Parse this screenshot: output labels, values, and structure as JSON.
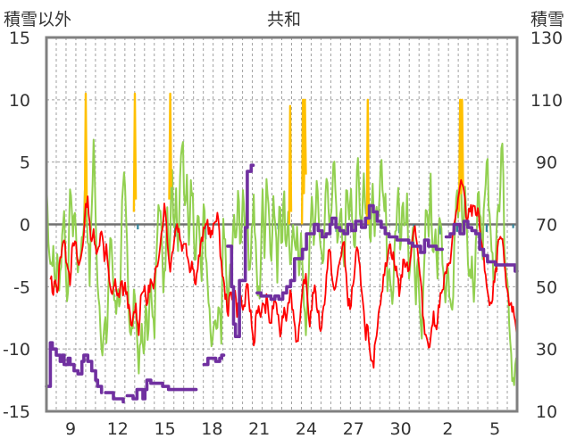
{
  "chart_data": {
    "type": "line",
    "title": "共和",
    "ylabel_left": "積雪以外",
    "ylabel_right": "積雪",
    "ylim_left": [
      -15,
      15
    ],
    "ylim_right": [
      10,
      130
    ],
    "yticks_left": [
      "15",
      "10",
      "5",
      "0",
      "-5",
      "-10",
      "-15"
    ],
    "yticks_right": [
      "130",
      "110",
      "90",
      "70",
      "50",
      "30",
      "10"
    ],
    "xticks": [
      "9",
      "12",
      "15",
      "18",
      "21",
      "24",
      "27",
      "30",
      "2",
      "5"
    ],
    "grid": true,
    "colors": {
      "frame": "#808080",
      "grid": "#a0a0a0",
      "zero_line": "#707070",
      "red": "#ff0000",
      "green": "#92d050",
      "orange": "#ffc000",
      "teal": "#31859c",
      "purple": "#7030a0",
      "text": "#333333"
    },
    "series": [
      {
        "key": "red",
        "axis": "left",
        "values": [
          -1.2,
          -3.0,
          -4.2,
          -5.5,
          -4.0,
          -6.0,
          -3.5,
          -2.0,
          -1.0,
          -2.5,
          -3.0,
          -4.5,
          -2.2,
          -1.5,
          -2.0,
          -3.5,
          -2.8,
          -1.5,
          0.5,
          2.2,
          1.0,
          -2.0,
          -0.5,
          -1.5,
          -2.5,
          -1.0,
          0.0,
          -3.0,
          -2.0,
          -4.0,
          -5.0,
          -5.8,
          -4.5,
          -6.0,
          -5.5,
          -4.5,
          -5.5,
          -5.0,
          -6.0,
          -7.5,
          -8.5,
          -7.0,
          -6.5,
          -9.0,
          -6.0,
          -5.0,
          -5.5,
          -6.5,
          -5.0,
          -4.5,
          -5.5,
          -4.0,
          -3.0,
          -1.5,
          -0.5,
          1.5,
          0.5,
          -2.5,
          -3.5,
          -2.0,
          -0.5,
          0.0,
          -0.5,
          -1.5,
          -2.0,
          -1.0,
          -2.5,
          -3.5,
          -3.0,
          -4.0,
          -4.5,
          -3.0,
          -2.0,
          -1.0,
          -0.5,
          0.5,
          -0.5,
          -1.0,
          -0.5,
          0.5,
          1.0,
          -1.5,
          -3.5,
          -5.0,
          -6.0,
          -7.0,
          -5.5,
          -6.0,
          -5.0,
          -7.0,
          -6.5,
          -6.0,
          -7.0,
          -6.0,
          -5.0,
          -6.5,
          -8.0,
          -10.0,
          -7.0,
          -6.5,
          -8.0,
          -6.0,
          -7.0,
          -6.0,
          -7.5,
          -8.0,
          -6.5,
          -6.0,
          -7.0,
          -9.0,
          -8.0,
          -6.5,
          -7.5,
          -6.0,
          -5.5,
          -6.5,
          -8.0,
          -9.5,
          -8.5,
          -7.0,
          -5.0,
          -4.0,
          -6.0,
          -8.0,
          -6.5,
          -5.0,
          -6.0,
          -7.0,
          -8.5,
          -7.5,
          -6.0,
          -4.0,
          -2.0,
          -3.0,
          -5.0,
          -5.5,
          -4.0,
          -3.0,
          -2.0,
          -1.5,
          -4.0,
          -6.0,
          -7.0,
          -5.0,
          -4.0,
          -2.0,
          -3.0,
          -4.5,
          -6.0,
          -9.0,
          -8.0,
          -10.5,
          -11.5,
          -11.0,
          -9.0,
          -7.5,
          -6.0,
          -5.0,
          -4.0,
          -3.0,
          -1.5,
          -2.0,
          -2.5,
          -3.5,
          -4.0,
          -5.5,
          -4.0,
          -3.0,
          -3.0,
          -4.0,
          -2.5,
          -1.5,
          0.5,
          -1.5,
          -3.0,
          -5.0,
          -7.0,
          -9.0,
          -8.5,
          -10.5,
          -8.0,
          -7.5,
          -8.5,
          -7.0,
          -6.0,
          -5.5,
          -4.5,
          -4.0,
          -3.0,
          -2.5,
          -1.0,
          0.5,
          1.5,
          2.5,
          3.2,
          2.8,
          1.0,
          0.2,
          1.5,
          1.0,
          2.0,
          0.5,
          1.0,
          -1.0,
          -2.5,
          -3.5,
          -5.0,
          -6.5,
          -6.8,
          -5.0,
          -4.0,
          -2.0,
          -1.0,
          -1.5,
          -3.0,
          -5.0,
          -6.5,
          -6.0,
          -7.0,
          -7.5,
          -9.0
        ]
      },
      {
        "key": "green",
        "axis": "left",
        "values": [
          3.2,
          -1.0,
          -3.5,
          -2.0,
          -5.0,
          -3.0,
          -4.5,
          -2.5,
          2.0,
          -3.5,
          -6.5,
          4.5,
          -1.0,
          1.5,
          -2.0,
          -4.0,
          -1.5,
          -0.5,
          3.0,
          0.0,
          -4.5,
          1.5,
          7.5,
          -2.0,
          -5.0,
          -7.5,
          -10.5,
          -8.0,
          -9.5,
          -3.0,
          -1.0,
          -4.5,
          -7.0,
          -5.0,
          -8.5,
          1.0,
          4.0,
          1.5,
          -6.0,
          -9.5,
          -8.0,
          -4.5,
          -9.5,
          -11.5,
          -8.5,
          -10.5,
          -7.0,
          -9.0,
          -4.0,
          -7.5,
          -9.0,
          -1.5,
          3.0,
          0.5,
          -5.0,
          -3.0,
          1.5,
          -3.0,
          5.0,
          0.0,
          3.0,
          -2.0,
          4.5,
          8.0,
          0.5,
          3.5,
          -2.0,
          4.5,
          1.0,
          -3.0,
          2.0,
          -1.0,
          -5.0,
          3.0,
          -3.5,
          -6.0,
          -9.0,
          -10.5,
          -7.0,
          -9.5,
          -6.5,
          -10.0,
          1.5,
          -3.0,
          -7.0,
          -4.0,
          -2.5,
          0.5,
          -1.0,
          2.5,
          -2.5,
          3.5,
          -0.5,
          1.5,
          -4.0,
          -1.0,
          2.0,
          -2.5,
          -6.0,
          -5.0,
          2.5,
          -2.0,
          4.0,
          1.5,
          -3.0,
          2.0,
          0.0,
          -4.0,
          3.0,
          -1.5,
          2.5,
          -2.0,
          1.5,
          -4.5,
          0.5,
          -3.0,
          -1.0,
          -4.0,
          0.5,
          -6.0,
          -9.0,
          -5.0,
          -1.5,
          2.0,
          -2.0,
          3.5,
          0.5,
          -1.5,
          -3.5,
          1.0,
          4.0,
          -0.5,
          2.0,
          5.5,
          1.5,
          -2.5,
          2.0,
          -1.0,
          -3.0,
          4.5,
          -1.0,
          3.0,
          0.0,
          -2.0,
          6.5,
          2.0,
          -1.0,
          5.0,
          0.5,
          3.5,
          -1.5,
          4.0,
          -2.0,
          2.5,
          -0.5,
          5.5,
          1.0,
          3.0,
          -5.0,
          -3.0,
          -7.5,
          -3.0,
          0.5,
          4.0,
          -2.0,
          2.5,
          -1.5,
          3.0,
          -4.0,
          -1.0,
          0.5,
          -6.5,
          -2.5,
          -8.0,
          -9.0,
          -2.5,
          2.0,
          -1.0,
          3.5,
          -3.0,
          0.0,
          -4.5,
          1.5,
          -1.0,
          -4.0,
          -5.5,
          -3.0,
          -6.0,
          -7.0,
          -1.5,
          2.5,
          1.0,
          3.0,
          -0.5,
          2.5,
          -2.5,
          -4.5,
          -3.0,
          -6.5,
          -1.0,
          3.5,
          1.0,
          -2.0,
          2.0,
          6.0,
          1.0,
          -1.5,
          -4.0,
          -2.5,
          0.5,
          2.5,
          8.5,
          -0.5,
          -3.5,
          -6.0,
          -9.5,
          -12.5,
          -11.5,
          -11.0
        ]
      },
      {
        "key": "purple",
        "axis": "right",
        "values": [
          18,
          18,
          32,
          30,
          30,
          28,
          28,
          26,
          28,
          25,
          25,
          27,
          25,
          25,
          23,
          23,
          22,
          22,
          26,
          28,
          28,
          26,
          26,
          23,
          23,
          20,
          18,
          18,
          16,
          null,
          16,
          16,
          16,
          16,
          14,
          14,
          14,
          14,
          14,
          13,
          null,
          15,
          15,
          15,
          14,
          14,
          17,
          17,
          17,
          14,
          17,
          20,
          20,
          19,
          19,
          19,
          19,
          19,
          19,
          18,
          18,
          18,
          17,
          17,
          17,
          17,
          17,
          17,
          17,
          17,
          17,
          17,
          17,
          17,
          17,
          17,
          17,
          null,
          null,
          null,
          25,
          25,
          27,
          27,
          27,
          27,
          26,
          26,
          27,
          28,
          28,
          null,
          63,
          63,
          50,
          38,
          34,
          34,
          52,
          52,
          52,
          69,
          87,
          87,
          89,
          89,
          null,
          48,
          48,
          47,
          47,
          47,
          47,
          47,
          46,
          46,
          47,
          47,
          46,
          46,
          48,
          48,
          50,
          50,
          52,
          52,
          59,
          59,
          59,
          59,
          62,
          62,
          67,
          67,
          67,
          67,
          70,
          70,
          68,
          68,
          66,
          66,
          67,
          67,
          70,
          72,
          72,
          69,
          69,
          68,
          68,
          67,
          67,
          70,
          70,
          68,
          68,
          71,
          71,
          71,
          69,
          69,
          72,
          72,
          76,
          76,
          74,
          74,
          71,
          71,
          69,
          69,
          67,
          67,
          66,
          66,
          66,
          66,
          65,
          65,
          65,
          65,
          65,
          65,
          64,
          64,
          63,
          63,
          63,
          63,
          61,
          61,
          65,
          65,
          63,
          63,
          63,
          63,
          62,
          62,
          62,
          62,
          null,
          66,
          66,
          67,
          67,
          70,
          70,
          70,
          67,
          67,
          71,
          71,
          69,
          69,
          68,
          68,
          67,
          67,
          62,
          62,
          60,
          60,
          58,
          58,
          58,
          58,
          57,
          57,
          57,
          57,
          57,
          57,
          57,
          57,
          57,
          57,
          55,
          55
        ]
      },
      {
        "key": "orange",
        "axis": "left",
        "spikes": [
          {
            "at": 46,
            "values": [
              0,
              10.5,
              2
            ]
          },
          {
            "at": 104,
            "values": [
              1,
              10.5,
              2
            ]
          },
          {
            "at": 146,
            "values": [
              2,
              10.5,
              3
            ]
          },
          {
            "at": 288,
            "values": [
              0,
              9.5,
              1
            ]
          },
          {
            "at": 303,
            "values": [
              0,
              10,
              2.5,
              10,
              4
            ]
          },
          {
            "at": 380,
            "values": [
              0,
              10.0,
              0
            ]
          },
          {
            "at": 490,
            "values": [
              1,
              10,
              2.5,
              10,
              3
            ]
          }
        ]
      },
      {
        "key": "teal",
        "axis": "left",
        "bars": [
          {
            "at": 27,
            "value": -0.5
          },
          {
            "at": 55,
            "value": -0.4
          },
          {
            "at": 78,
            "value": -1.0
          },
          {
            "at": 96,
            "value": -1.2
          },
          {
            "at": 140,
            "value": -0.4
          },
          {
            "at": 175,
            "value": -0.6
          },
          {
            "at": 196,
            "value": -0.8
          },
          {
            "at": 213,
            "value": -0.7
          },
          {
            "at": 222,
            "value": -0.4
          },
          {
            "at": 238,
            "value": -0.8
          },
          {
            "at": 248,
            "value": -0.6
          },
          {
            "at": 266,
            "value": -0.6
          },
          {
            "at": 282,
            "value": -0.3
          }
        ]
      }
    ]
  }
}
